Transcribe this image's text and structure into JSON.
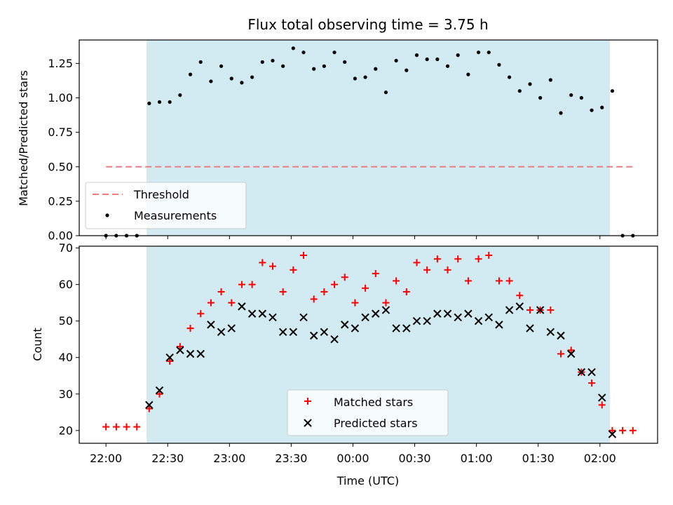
{
  "chart_data": [
    {
      "type": "scatter",
      "title": "Flux total observing time = 3.75 h",
      "xlabel": "",
      "ylabel": "Matched/Predicted stars",
      "xlim": [
        "21:47",
        "02:28"
      ],
      "ylim": [
        0,
        1.42
      ],
      "yticks": [
        "0.00",
        "0.25",
        "0.50",
        "0.75",
        "1.00",
        "1.25"
      ],
      "shaded_span": [
        "22:20",
        "02:06"
      ],
      "threshold": {
        "name": "Threshold",
        "value": 0.5,
        "x_range": [
          "22:00",
          "02:16"
        ],
        "color": "#f07c80"
      },
      "series": [
        {
          "name": "Measurements",
          "color": "#000000",
          "x": [
            "22:00",
            "22:05",
            "22:10",
            "22:15",
            "22:21",
            "22:26",
            "22:31",
            "22:36",
            "22:41",
            "22:46",
            "22:51",
            "22:56",
            "23:01",
            "23:06",
            "23:11",
            "23:16",
            "23:21",
            "23:26",
            "23:31",
            "23:36",
            "23:41",
            "23:46",
            "23:51",
            "23:56",
            "00:01",
            "00:06",
            "00:11",
            "00:16",
            "00:21",
            "00:26",
            "00:31",
            "00:36",
            "00:41",
            "00:46",
            "00:51",
            "00:56",
            "01:01",
            "01:06",
            "01:11",
            "01:16",
            "01:21",
            "01:26",
            "01:31",
            "01:36",
            "01:41",
            "01:46",
            "01:51",
            "01:56",
            "02:01",
            "02:06",
            "02:11",
            "02:16"
          ],
          "y": [
            0,
            0,
            0,
            0,
            0.96,
            0.97,
            0.97,
            1.02,
            1.17,
            1.26,
            1.12,
            1.23,
            1.14,
            1.11,
            1.15,
            1.26,
            1.27,
            1.23,
            1.36,
            1.33,
            1.21,
            1.23,
            1.33,
            1.26,
            1.14,
            1.15,
            1.21,
            1.04,
            1.27,
            1.2,
            1.31,
            1.28,
            1.28,
            1.23,
            1.31,
            1.17,
            1.33,
            1.33,
            1.24,
            1.15,
            1.05,
            1.1,
            1.0,
            1.13,
            0.89,
            1.02,
            1.0,
            0.91,
            0.93,
            1.05,
            0,
            0
          ]
        }
      ],
      "legend": {
        "position": "lower-left",
        "entries": [
          "Threshold",
          "Measurements"
        ]
      },
      "shade_color": "#add8e6"
    },
    {
      "type": "scatter",
      "title": "",
      "xlabel": "Time (UTC)",
      "ylabel": "Count",
      "xlim": [
        "21:47",
        "02:28"
      ],
      "ylim": [
        16.5,
        70.5
      ],
      "yticks": [
        "20",
        "30",
        "40",
        "50",
        "60",
        "70"
      ],
      "xticks": [
        "22:00",
        "22:30",
        "23:00",
        "23:30",
        "00:00",
        "00:30",
        "01:00",
        "01:30",
        "02:00"
      ],
      "shaded_span": [
        "22:20",
        "02:06"
      ],
      "series": [
        {
          "name": "Matched stars",
          "marker": "+",
          "color": "#ff0000",
          "x": [
            "22:00",
            "22:05",
            "22:10",
            "22:15",
            "22:21",
            "22:26",
            "22:31",
            "22:36",
            "22:41",
            "22:46",
            "22:51",
            "22:56",
            "23:01",
            "23:06",
            "23:11",
            "23:16",
            "23:21",
            "23:26",
            "23:31",
            "23:36",
            "23:41",
            "23:46",
            "23:51",
            "23:56",
            "00:01",
            "00:06",
            "00:11",
            "00:16",
            "00:21",
            "00:26",
            "00:31",
            "00:36",
            "00:41",
            "00:46",
            "00:51",
            "00:56",
            "01:01",
            "01:06",
            "01:11",
            "01:16",
            "01:21",
            "01:26",
            "01:31",
            "01:36",
            "01:41",
            "01:46",
            "01:51",
            "01:56",
            "02:01",
            "02:06",
            "02:11",
            "02:16"
          ],
          "y": [
            21,
            21,
            21,
            21,
            26,
            30,
            39,
            43,
            48,
            52,
            55,
            58,
            55,
            60,
            60,
            66,
            65,
            58,
            64,
            68,
            56,
            58,
            60,
            62,
            55,
            59,
            63,
            55,
            61,
            58,
            66,
            64,
            67,
            64,
            67,
            61,
            67,
            68,
            61,
            61,
            57,
            53,
            53,
            53,
            41,
            42,
            36,
            33,
            27,
            20,
            20,
            20
          ]
        },
        {
          "name": "Predicted stars",
          "marker": "x",
          "color": "#000000",
          "x": [
            "22:21",
            "22:26",
            "22:31",
            "22:36",
            "22:41",
            "22:46",
            "22:51",
            "22:56",
            "23:01",
            "23:06",
            "23:11",
            "23:16",
            "23:21",
            "23:26",
            "23:31",
            "23:36",
            "23:41",
            "23:46",
            "23:51",
            "23:56",
            "00:01",
            "00:06",
            "00:11",
            "00:16",
            "00:21",
            "00:26",
            "00:31",
            "00:36",
            "00:41",
            "00:46",
            "00:51",
            "00:56",
            "01:01",
            "01:06",
            "01:11",
            "01:16",
            "01:21",
            "01:26",
            "01:31",
            "01:36",
            "01:41",
            "01:46",
            "01:51",
            "01:56",
            "02:01",
            "02:06"
          ],
          "y": [
            27,
            31,
            40,
            42,
            41,
            41,
            49,
            47,
            48,
            54,
            52,
            52,
            51,
            47,
            47,
            51,
            46,
            47,
            45,
            49,
            48,
            51,
            52,
            53,
            48,
            48,
            50,
            50,
            52,
            52,
            51,
            52,
            50,
            51,
            49,
            53,
            54,
            48,
            53,
            47,
            46,
            41,
            36,
            36,
            29,
            19
          ]
        }
      ],
      "legend": {
        "position": "lower-center",
        "entries": [
          "Matched stars",
          "Predicted stars"
        ]
      },
      "shade_color": "#add8e6"
    }
  ]
}
